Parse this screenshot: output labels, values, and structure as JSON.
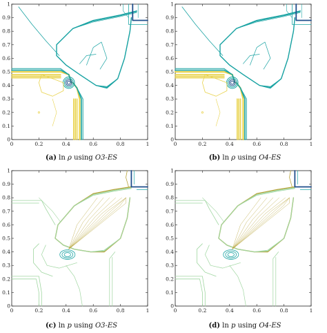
{
  "figure": {
    "panels": [
      {
        "id": "a",
        "caption": {
          "tag": "(a)",
          "prefix": "ln",
          "symbol": "ρ",
          "middle": "using",
          "method": "O3-ES"
        },
        "field": "density"
      },
      {
        "id": "b",
        "caption": {
          "tag": "(b)",
          "prefix": "ln",
          "symbol": "ρ",
          "middle": "using",
          "method": "O4-ES"
        },
        "field": "density"
      },
      {
        "id": "c",
        "caption": {
          "tag": "(c)",
          "prefix": "ln",
          "symbol": "p",
          "middle": "using",
          "method": "O3-ES"
        },
        "field": "pressure"
      },
      {
        "id": "d",
        "caption": {
          "tag": "(d)",
          "prefix": "ln",
          "symbol": "p",
          "middle": "using",
          "method": "O4-ES"
        },
        "field": "pressure"
      }
    ],
    "axes": {
      "x_ticks": [
        "0",
        "0.2",
        "0.4",
        "0.6",
        "0.8",
        "1"
      ],
      "y_ticks": [
        "0",
        "0.1",
        "0.2",
        "0.3",
        "0.4",
        "0.5",
        "0.6",
        "0.7",
        "0.8",
        "0.9",
        "1"
      ],
      "range": [
        0,
        1
      ]
    },
    "colors": {
      "density_dark": "#1f4e8c",
      "density_mid": "#1aa3a3",
      "density_light": "#e8d24a",
      "pressure_dark": "#1f4e8c",
      "pressure_mid": "#b8a43a",
      "pressure_light": "#9fd6a0"
    }
  }
}
